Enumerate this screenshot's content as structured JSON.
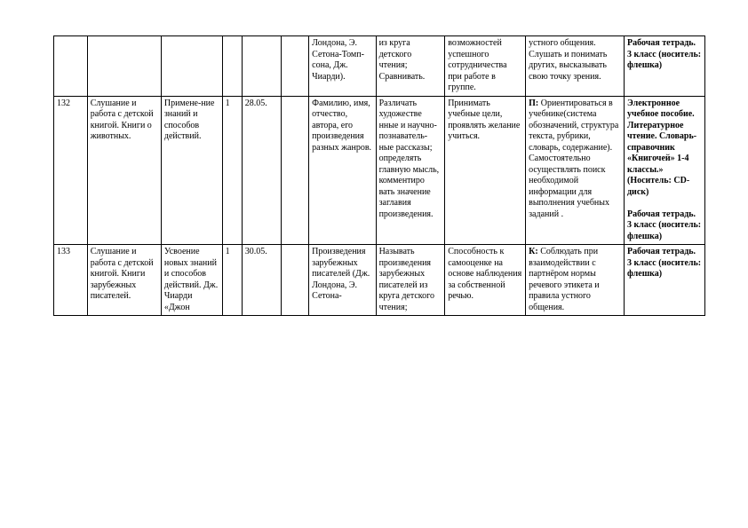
{
  "rows": [
    {
      "num": "",
      "topic": "",
      "activity": "",
      "hours": "",
      "date": "",
      "extra": "",
      "c7": "Лондона, Э. Сетона-Томп-сона, Дж. Чиарди).",
      "c8": "из круга детского чтения; Сравнивать.",
      "c9": "возможностей успешного сотрудничества  при работе в группе.",
      "c10": "устного общения. Слушать и понимать других, высказывать свою точку зрения.",
      "c11": "Рабочая тетрадь. 3 класс (носитель: флешка)",
      "c11_bold": true
    },
    {
      "num": "132",
      "topic": "Слушание и работа с детской  книгой. Книги о животных.",
      "activity": "Примене-ние знаний и способов действий.",
      "hours": "1",
      "date": "28.05.",
      "extra": "",
      "c7": "Фамилию, имя, отчество, автора, его произведения разных жанров.",
      "c8": "Различать художестве нные и научно-познаватель-ные рассказы; определять главную мысль, комментиро вать значение заглавия произведения.",
      "c9": "Принимать учебные цели, проявлять желание учиться.",
      "c10_prefix": "П:",
      "c10_body": "Ориентироваться в учебнике(система обозначений, структура текста, рубрики, словарь, содержание). Самостоятельно осуществлять поиск необходимой информации для выполнения учебных заданий .",
      "c11_html": true,
      "c11_a": "Электронное учебное пособие. Литературное чтение. Словарь-справочник «Книгочей» 1-4 классы.» (Носитель: CD-диск)",
      "c11_b": "Рабочая тетрадь. 3 класс (носитель: флешка)"
    },
    {
      "num": "133",
      "topic": "Слушание и работа с детской  книгой. Книги зарубежных писателей.",
      "activity": "Усвоение новых знаний и способов действий. Дж. Чиарди «Джон",
      "hours": "1",
      "date": "30.05.",
      "extra": "",
      "c7": "Произведения зарубежных писателей (Дж. Лондона, Э. Сетона-",
      "c8": "Называть произведения зарубежных писателей из круга детского чтения;",
      "c9": "Способность к самооценке на основе наблюдения за собственной речью.",
      "c10_prefix": "К:",
      "c10_body": "Соблюдать при взаимодействии с партнёром нормы речевого этикета и правила устного общения.",
      "c11": "Рабочая тетрадь. 3 класс (носитель: флешка)",
      "c11_bold": true
    }
  ]
}
